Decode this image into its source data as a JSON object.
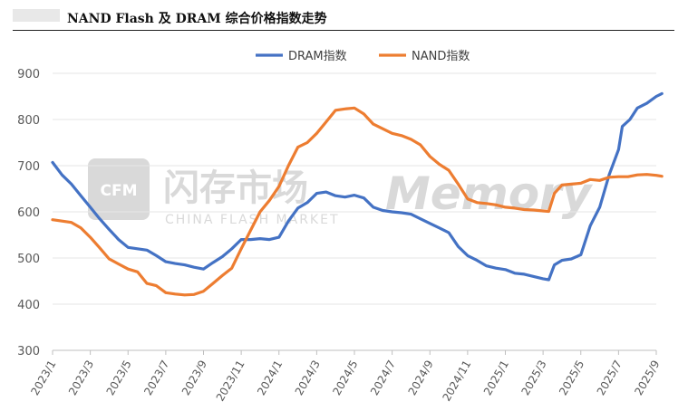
{
  "header": {
    "title": "NAND Flash 及 DRAM 综合价格指数走势"
  },
  "watermark": {
    "logo": "CFM",
    "name": "闪存市场",
    "sub": "CHINA FLASH MARKET",
    "brand": "Memory"
  },
  "chart_data": {
    "type": "line",
    "title": "NAND Flash 及 DRAM 综合价格指数走势",
    "xlabel": "",
    "ylabel": "",
    "ylim": [
      300,
      900
    ],
    "yticks": [
      300,
      400,
      500,
      600,
      700,
      800,
      900
    ],
    "grid": true,
    "legend_position": "top-center",
    "x_range": [
      "2023/1",
      "2025/9"
    ],
    "xtick_labels": [
      "2023/1",
      "2023/3",
      "2023/5",
      "2023/7",
      "2023/9",
      "2023/11",
      "2024/1",
      "2024/3",
      "2024/5",
      "2024/7",
      "2024/9",
      "2024/11",
      "2025/1",
      "2025/3",
      "2025/5",
      "2025/7",
      "2025/9"
    ],
    "series": [
      {
        "name": "DRAM指数",
        "color": "#4472c4",
        "points": [
          [
            "2023/1",
            707
          ],
          [
            "2023/1.5",
            680
          ],
          [
            "2023/2",
            660
          ],
          [
            "2023/2.5",
            635
          ],
          [
            "2023/3",
            610
          ],
          [
            "2023/3.5",
            585
          ],
          [
            "2023/4",
            562
          ],
          [
            "2023/4.5",
            540
          ],
          [
            "2023/5",
            523
          ],
          [
            "2023/5.5",
            520
          ],
          [
            "2023/6",
            517
          ],
          [
            "2023/6.5",
            505
          ],
          [
            "2023/7",
            492
          ],
          [
            "2023/7.5",
            488
          ],
          [
            "2023/8",
            485
          ],
          [
            "2023/8.5",
            480
          ],
          [
            "2023/9",
            476
          ],
          [
            "2023/9.5",
            490
          ],
          [
            "2023/10",
            503
          ],
          [
            "2023/10.5",
            520
          ],
          [
            "2023/11",
            540
          ],
          [
            "2023/11.5",
            540
          ],
          [
            "2023/12",
            542
          ],
          [
            "2023/12.5",
            540
          ],
          [
            "2024/1",
            545
          ],
          [
            "2024/1.5",
            580
          ],
          [
            "2024/2",
            608
          ],
          [
            "2024/2.5",
            620
          ],
          [
            "2024/3",
            640
          ],
          [
            "2024/3.5",
            643
          ],
          [
            "2024/4",
            635
          ],
          [
            "2024/4.5",
            632
          ],
          [
            "2024/5",
            636
          ],
          [
            "2024/5.5",
            630
          ],
          [
            "2024/6",
            610
          ],
          [
            "2024/6.5",
            603
          ],
          [
            "2024/7",
            600
          ],
          [
            "2024/7.5",
            598
          ],
          [
            "2024/8",
            595
          ],
          [
            "2024/8.5",
            585
          ],
          [
            "2024/9",
            575
          ],
          [
            "2024/9.5",
            565
          ],
          [
            "2024/10",
            555
          ],
          [
            "2024/10.5",
            525
          ],
          [
            "2024/11",
            505
          ],
          [
            "2024/11.5",
            495
          ],
          [
            "2024/12",
            483
          ],
          [
            "2024/12.5",
            478
          ],
          [
            "2025/1",
            475
          ],
          [
            "2025/1.5",
            467
          ],
          [
            "2025/2",
            465
          ],
          [
            "2025/2.5",
            460
          ],
          [
            "2025/3",
            455
          ],
          [
            "2025/3.3",
            453
          ],
          [
            "2025/3.6",
            485
          ],
          [
            "2025/4",
            495
          ],
          [
            "2025/4.5",
            498
          ],
          [
            "2025/5",
            507
          ],
          [
            "2025/5.5",
            570
          ],
          [
            "2025/6",
            610
          ],
          [
            "2025/6.5",
            680
          ],
          [
            "2025/7",
            735
          ],
          [
            "2025/7.2",
            785
          ],
          [
            "2025/7.6",
            800
          ],
          [
            "2025/8",
            825
          ],
          [
            "2025/8.5",
            835
          ],
          [
            "2025/9",
            850
          ],
          [
            "2025/9.3",
            856
          ]
        ]
      },
      {
        "name": "NAND指数",
        "color": "#ed7d31",
        "points": [
          [
            "2023/1",
            583
          ],
          [
            "2023/1.5",
            580
          ],
          [
            "2023/2",
            577
          ],
          [
            "2023/2.5",
            565
          ],
          [
            "2023/3",
            545
          ],
          [
            "2023/3.5",
            522
          ],
          [
            "2023/4",
            498
          ],
          [
            "2023/4.5",
            487
          ],
          [
            "2023/5",
            476
          ],
          [
            "2023/5.5",
            470
          ],
          [
            "2023/6",
            445
          ],
          [
            "2023/6.5",
            440
          ],
          [
            "2023/7",
            425
          ],
          [
            "2023/7.5",
            422
          ],
          [
            "2023/8",
            420
          ],
          [
            "2023/8.5",
            421
          ],
          [
            "2023/9",
            428
          ],
          [
            "2023/9.5",
            445
          ],
          [
            "2023/10",
            462
          ],
          [
            "2023/10.5",
            478
          ],
          [
            "2023/11",
            520
          ],
          [
            "2023/11.5",
            560
          ],
          [
            "2023/12",
            600
          ],
          [
            "2023/12.5",
            625
          ],
          [
            "2024/1",
            655
          ],
          [
            "2024/1.5",
            700
          ],
          [
            "2024/2",
            740
          ],
          [
            "2024/2.5",
            750
          ],
          [
            "2024/3",
            770
          ],
          [
            "2024/3.5",
            795
          ],
          [
            "2024/4",
            820
          ],
          [
            "2024/4.5",
            823
          ],
          [
            "2024/5",
            825
          ],
          [
            "2024/5.5",
            812
          ],
          [
            "2024/6",
            790
          ],
          [
            "2024/6.5",
            780
          ],
          [
            "2024/7",
            770
          ],
          [
            "2024/7.5",
            765
          ],
          [
            "2024/8",
            757
          ],
          [
            "2024/8.5",
            745
          ],
          [
            "2024/9",
            720
          ],
          [
            "2024/9.5",
            703
          ],
          [
            "2024/10",
            690
          ],
          [
            "2024/10.5",
            660
          ],
          [
            "2024/11",
            628
          ],
          [
            "2024/11.5",
            620
          ],
          [
            "2024/12",
            618
          ],
          [
            "2024/12.5",
            615
          ],
          [
            "2025/1",
            610
          ],
          [
            "2025/1.5",
            608
          ],
          [
            "2025/2",
            605
          ],
          [
            "2025/2.5",
            604
          ],
          [
            "2025/3",
            602
          ],
          [
            "2025/3.3",
            601
          ],
          [
            "2025/3.6",
            640
          ],
          [
            "2025/4",
            658
          ],
          [
            "2025/4.5",
            660
          ],
          [
            "2025/5",
            662
          ],
          [
            "2025/5.5",
            670
          ],
          [
            "2025/6",
            668
          ],
          [
            "2025/6.5",
            675
          ],
          [
            "2025/7",
            676
          ],
          [
            "2025/7.5",
            676
          ],
          [
            "2025/8",
            680
          ],
          [
            "2025/8.5",
            681
          ],
          [
            "2025/9",
            679
          ],
          [
            "2025/9.3",
            677
          ]
        ]
      }
    ]
  }
}
